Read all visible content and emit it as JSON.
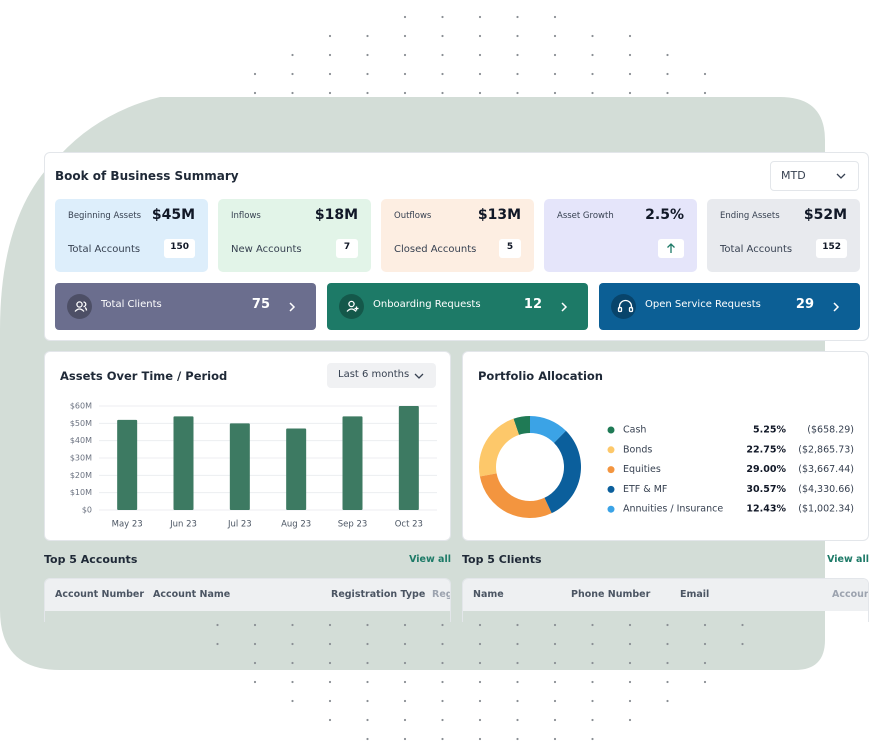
{
  "summary": {
    "title": "Book of Business Summary",
    "period": "MTD",
    "cards": [
      {
        "label": "Beginning Assets",
        "value": "$45M",
        "sub_label": "Total Accounts",
        "sub_value": "150",
        "color": "#ddeefb"
      },
      {
        "label": "Inflows",
        "value": "$18M",
        "sub_label": "New Accounts",
        "sub_value": "7",
        "color": "#e2f4e8"
      },
      {
        "label": "Outflows",
        "value": "$13M",
        "sub_label": "Closed Accounts",
        "sub_value": "5",
        "color": "#fdeee2"
      },
      {
        "label": "Asset Growth",
        "value": "2.5%",
        "color": "#e5e5fa"
      },
      {
        "label": "Ending Assets",
        "value": "$52M",
        "sub_label": "Total Accounts",
        "sub_value": "152",
        "color": "#e8eaee"
      }
    ],
    "buttons": [
      {
        "label": "Total Clients",
        "count": "75",
        "color": "#6b6e8e"
      },
      {
        "label": "Onboarding Requests",
        "count": "12",
        "color": "#1d7a67"
      },
      {
        "label": "Open Service Requests",
        "count": "29",
        "color": "#0c5f95"
      }
    ]
  },
  "assets_chart": {
    "type": "bar",
    "title": "Assets Over Time / Period",
    "period": "Last 6 months",
    "categories": [
      "May 23",
      "Jun 23",
      "Jul 23",
      "Aug 23",
      "Sep 23",
      "Oct 23"
    ],
    "values": [
      52,
      54,
      50,
      47,
      54,
      60
    ],
    "color": "#3d7a62",
    "ylim": [
      0,
      60
    ],
    "yticks": [
      {
        "value": 0,
        "label": "$0"
      },
      {
        "value": 10,
        "label": "$10M"
      },
      {
        "value": 20,
        "label": "$20M"
      },
      {
        "value": 30,
        "label": "$30M"
      },
      {
        "value": 40,
        "label": "$40M"
      },
      {
        "value": 50,
        "label": "$50M"
      },
      {
        "value": 60,
        "label": "$60M"
      }
    ],
    "grid": true
  },
  "portfolio": {
    "type": "pie",
    "title": "Portfolio Allocation",
    "categories": [
      "Cash",
      "Bonds",
      "Equities",
      "ETF & MF",
      "Annuities / Insurance"
    ],
    "values": [
      5.25,
      22.75,
      29,
      30.57,
      12.43
    ],
    "value_labels": [
      "5.25%",
      "22.75%",
      "29.00%",
      "30.57%",
      "12.43%"
    ],
    "amounts": [
      "($658.29)",
      "($2,865.73)",
      "($3,667.44)",
      "($4,330.66)",
      "($1,002.34)"
    ],
    "colors": [
      "#1f7a55",
      "#fdc86a",
      "#f3953f",
      "#0b5f9c",
      "#3ba3e6"
    ]
  },
  "accounts": {
    "title": "Top 5 Accounts",
    "view_all": "View all",
    "columns": [
      "Account Number",
      "Account Name",
      "Registration Type",
      "Reg"
    ]
  },
  "clients": {
    "title": "Top 5 Clients",
    "view_all": "View all",
    "columns": [
      "Name",
      "Phone Number",
      "Email",
      "Account"
    ]
  }
}
